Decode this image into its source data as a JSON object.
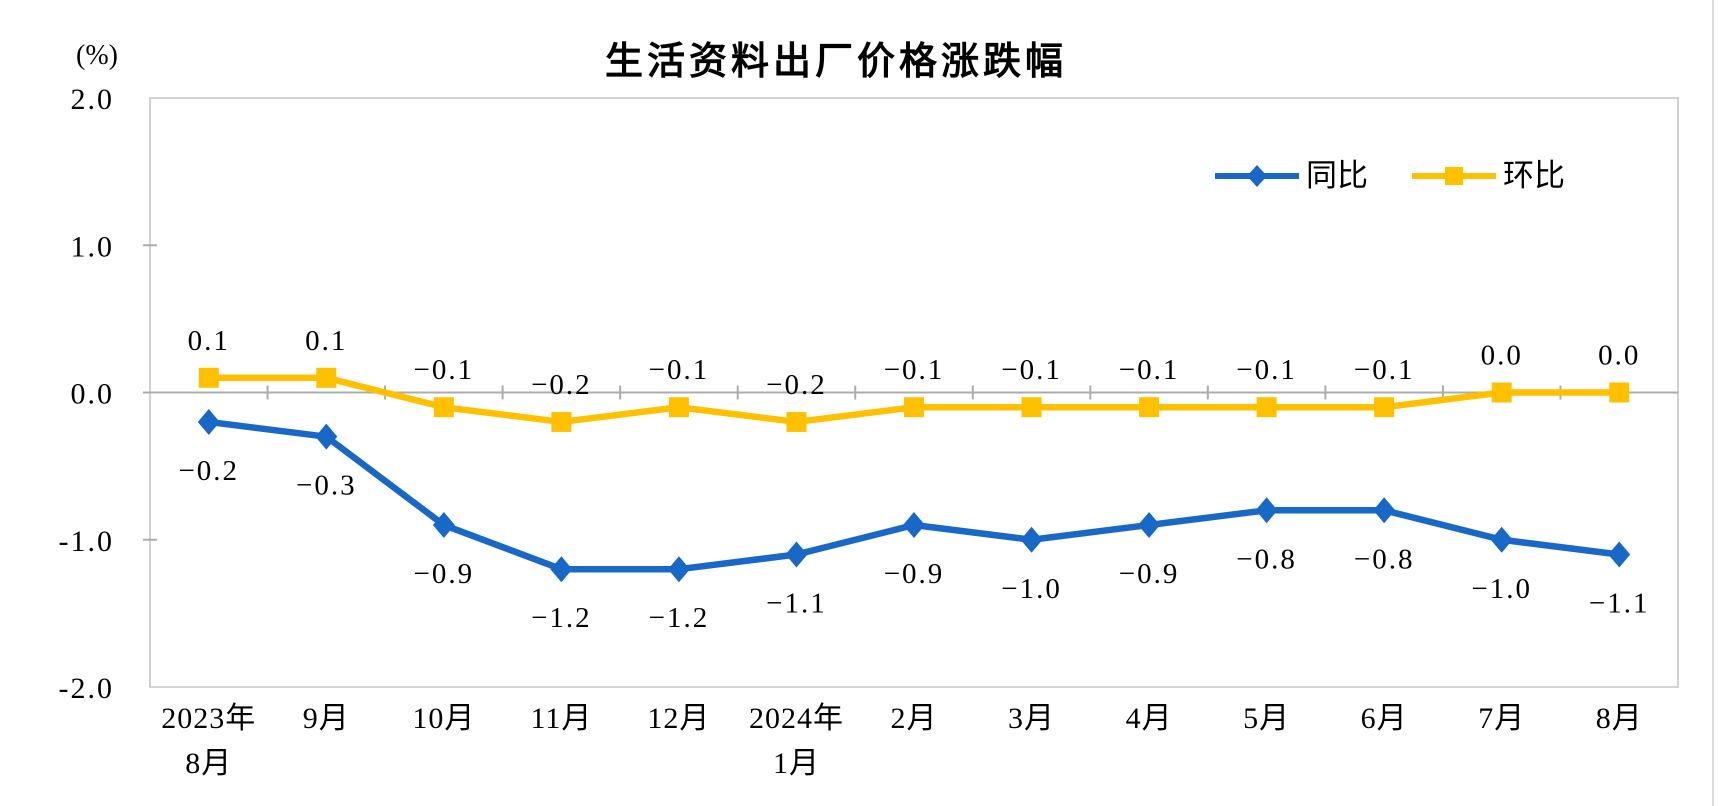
{
  "chart_data": {
    "type": "line",
    "title": "生活资料出厂价格涨跌幅",
    "ylabel": "(%)",
    "xlabel": "",
    "ylim": [
      -2.0,
      2.0
    ],
    "yticks": [
      2.0,
      1.0,
      0.0,
      -1.0,
      -2.0
    ],
    "ytick_labels": [
      "2.0",
      "1.0",
      "0.0",
      "-1.0",
      "-2.0"
    ],
    "grid": false,
    "legend_position": "top-right-inside",
    "categories": [
      "2023年8月",
      "9月",
      "10月",
      "11月",
      "12月",
      "2024年1月",
      "2月",
      "3月",
      "4月",
      "5月",
      "6月",
      "7月",
      "8月"
    ],
    "category_label_lines": [
      [
        "2023年",
        "8月"
      ],
      [
        "9月"
      ],
      [
        "10月"
      ],
      [
        "11月"
      ],
      [
        "12月"
      ],
      [
        "2024年",
        "1月"
      ],
      [
        "2月"
      ],
      [
        "3月"
      ],
      [
        "4月"
      ],
      [
        "5月"
      ],
      [
        "6月"
      ],
      [
        "7月"
      ],
      [
        "8月"
      ]
    ],
    "series": [
      {
        "name": "同比",
        "color": "#1868C8",
        "marker": "diamond",
        "label_position": "below",
        "values": [
          -0.2,
          -0.3,
          -0.9,
          -1.2,
          -1.2,
          -1.1,
          -0.9,
          -1.0,
          -0.9,
          -0.8,
          -0.8,
          -1.0,
          -1.1
        ],
        "labels": [
          "−0.2",
          "−0.3",
          "−0.9",
          "−1.2",
          "−1.2",
          "−1.1",
          "−0.9",
          "−1.0",
          "−0.9",
          "−0.8",
          "−0.8",
          "−1.0",
          "−1.1"
        ]
      },
      {
        "name": "环比",
        "color": "#FFC000",
        "marker": "square",
        "label_position": "above",
        "values": [
          0.1,
          0.1,
          -0.1,
          -0.2,
          -0.1,
          -0.2,
          -0.1,
          -0.1,
          -0.1,
          -0.1,
          -0.1,
          0.0,
          0.0
        ],
        "labels": [
          "0.1",
          "0.1",
          "−0.1",
          "−0.2",
          "−0.1",
          "−0.2",
          "−0.1",
          "−0.1",
          "−0.1",
          "−0.1",
          "−0.1",
          "0.0",
          "0.0"
        ]
      }
    ]
  },
  "colors": {
    "plot_border": "#C3C3C3",
    "axis_line": "#ACACAC",
    "text": "#000000"
  }
}
